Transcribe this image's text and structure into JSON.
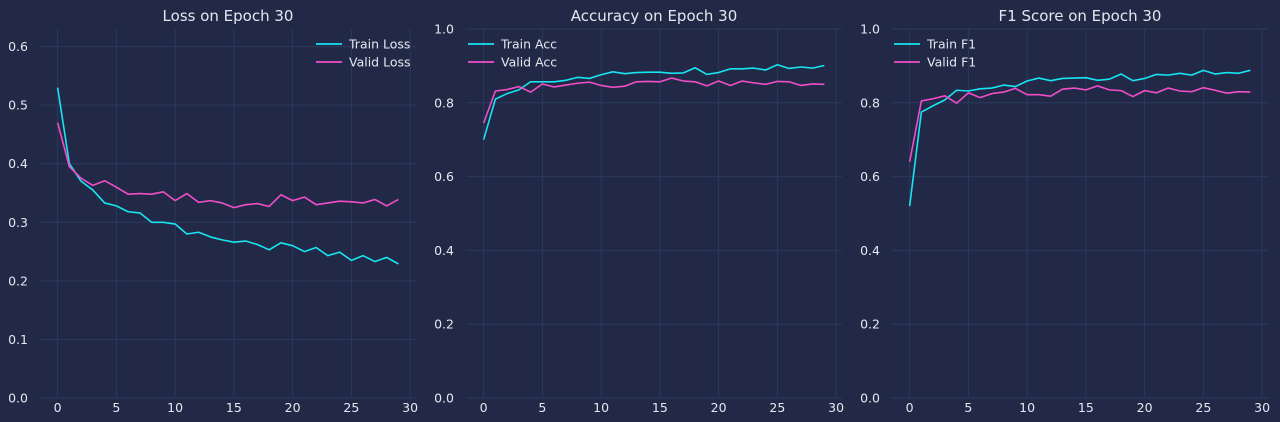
{
  "theme": {
    "background": "#212946",
    "grid": "#2a3a5e",
    "text": "#e6e6f0",
    "train_color": "#18e4f2",
    "valid_color": "#f04ec8"
  },
  "chart_data": [
    {
      "type": "line",
      "title": "Loss on Epoch 30",
      "xlabel": "",
      "ylabel": "",
      "xlim": [
        -1.5,
        30.5
      ],
      "ylim": [
        0.0,
        0.63
      ],
      "xticks": [
        0,
        5,
        10,
        15,
        20,
        25,
        30
      ],
      "yticks": [
        0.0,
        0.1,
        0.2,
        0.3,
        0.4,
        0.5,
        0.6
      ],
      "ytick_labels": [
        "0.0",
        "0.1",
        "0.2",
        "0.3",
        "0.4",
        "0.5",
        "0.6"
      ],
      "grid": true,
      "legend_position": "top-right",
      "x": [
        0,
        1,
        2,
        3,
        4,
        5,
        6,
        7,
        8,
        9,
        10,
        11,
        12,
        13,
        14,
        15,
        16,
        17,
        18,
        19,
        20,
        21,
        22,
        23,
        24,
        25,
        26,
        27,
        28,
        29
      ],
      "series": [
        {
          "name": "Train Loss",
          "color": "#18e4f2",
          "values": [
            0.53,
            0.4,
            0.37,
            0.355,
            0.333,
            0.328,
            0.318,
            0.316,
            0.3,
            0.3,
            0.297,
            0.28,
            0.283,
            0.275,
            0.27,
            0.266,
            0.268,
            0.262,
            0.253,
            0.265,
            0.26,
            0.25,
            0.257,
            0.243,
            0.249,
            0.235,
            0.243,
            0.233,
            0.24,
            0.229
          ]
        },
        {
          "name": "Valid Loss",
          "color": "#f04ec8",
          "values": [
            0.47,
            0.395,
            0.375,
            0.363,
            0.371,
            0.36,
            0.348,
            0.349,
            0.348,
            0.352,
            0.337,
            0.349,
            0.334,
            0.337,
            0.333,
            0.325,
            0.33,
            0.332,
            0.327,
            0.347,
            0.337,
            0.343,
            0.33,
            0.333,
            0.336,
            0.335,
            0.333,
            0.339,
            0.328,
            0.339
          ]
        }
      ]
    },
    {
      "type": "line",
      "title": "Accuracy on Epoch 30",
      "xlabel": "",
      "ylabel": "",
      "xlim": [
        -1.5,
        30.5
      ],
      "ylim": [
        0.0,
        1.0
      ],
      "xticks": [
        0,
        5,
        10,
        15,
        20,
        25,
        30
      ],
      "yticks": [
        0.0,
        0.2,
        0.4,
        0.6,
        0.8,
        1.0
      ],
      "ytick_labels": [
        "0.0",
        "0.2",
        "0.4",
        "0.6",
        "0.8",
        "1.0"
      ],
      "grid": true,
      "legend_position": "top-left",
      "x": [
        0,
        1,
        2,
        3,
        4,
        5,
        6,
        7,
        8,
        9,
        10,
        11,
        12,
        13,
        14,
        15,
        16,
        17,
        18,
        19,
        20,
        21,
        22,
        23,
        24,
        25,
        26,
        27,
        28,
        29
      ],
      "series": [
        {
          "name": "Train Acc",
          "color": "#18e4f2",
          "values": [
            0.7,
            0.81,
            0.825,
            0.835,
            0.857,
            0.857,
            0.857,
            0.861,
            0.869,
            0.866,
            0.876,
            0.884,
            0.879,
            0.882,
            0.883,
            0.883,
            0.88,
            0.881,
            0.895,
            0.877,
            0.882,
            0.892,
            0.892,
            0.894,
            0.889,
            0.903,
            0.893,
            0.897,
            0.894,
            0.901
          ]
        },
        {
          "name": "Valid Acc",
          "color": "#f04ec8",
          "values": [
            0.745,
            0.832,
            0.836,
            0.844,
            0.829,
            0.851,
            0.843,
            0.848,
            0.853,
            0.856,
            0.847,
            0.842,
            0.845,
            0.857,
            0.858,
            0.857,
            0.867,
            0.859,
            0.857,
            0.846,
            0.859,
            0.847,
            0.859,
            0.854,
            0.85,
            0.858,
            0.857,
            0.847,
            0.851,
            0.85
          ]
        }
      ]
    },
    {
      "type": "line",
      "title": "F1 Score on Epoch 30",
      "xlabel": "",
      "ylabel": "",
      "xlim": [
        -1.5,
        30.5
      ],
      "ylim": [
        0.0,
        1.0
      ],
      "xticks": [
        0,
        5,
        10,
        15,
        20,
        25,
        30
      ],
      "yticks": [
        0.0,
        0.2,
        0.4,
        0.6,
        0.8,
        1.0
      ],
      "ytick_labels": [
        "0.0",
        "0.2",
        "0.4",
        "0.6",
        "0.8",
        "1.0"
      ],
      "grid": true,
      "legend_position": "top-left",
      "x": [
        0,
        1,
        2,
        3,
        4,
        5,
        6,
        7,
        8,
        9,
        10,
        11,
        12,
        13,
        14,
        15,
        16,
        17,
        18,
        19,
        20,
        21,
        22,
        23,
        24,
        25,
        26,
        27,
        28,
        29
      ],
      "series": [
        {
          "name": "Train F1",
          "color": "#18e4f2",
          "values": [
            0.52,
            0.775,
            0.792,
            0.808,
            0.834,
            0.832,
            0.838,
            0.84,
            0.848,
            0.844,
            0.859,
            0.867,
            0.86,
            0.866,
            0.867,
            0.868,
            0.861,
            0.864,
            0.878,
            0.86,
            0.866,
            0.877,
            0.875,
            0.88,
            0.875,
            0.888,
            0.878,
            0.882,
            0.88,
            0.888
          ]
        },
        {
          "name": "Valid F1",
          "color": "#f04ec8",
          "values": [
            0.64,
            0.805,
            0.811,
            0.819,
            0.799,
            0.827,
            0.814,
            0.825,
            0.829,
            0.839,
            0.822,
            0.822,
            0.818,
            0.837,
            0.84,
            0.835,
            0.846,
            0.835,
            0.833,
            0.817,
            0.833,
            0.827,
            0.84,
            0.832,
            0.83,
            0.841,
            0.834,
            0.826,
            0.83,
            0.829
          ]
        }
      ]
    }
  ]
}
